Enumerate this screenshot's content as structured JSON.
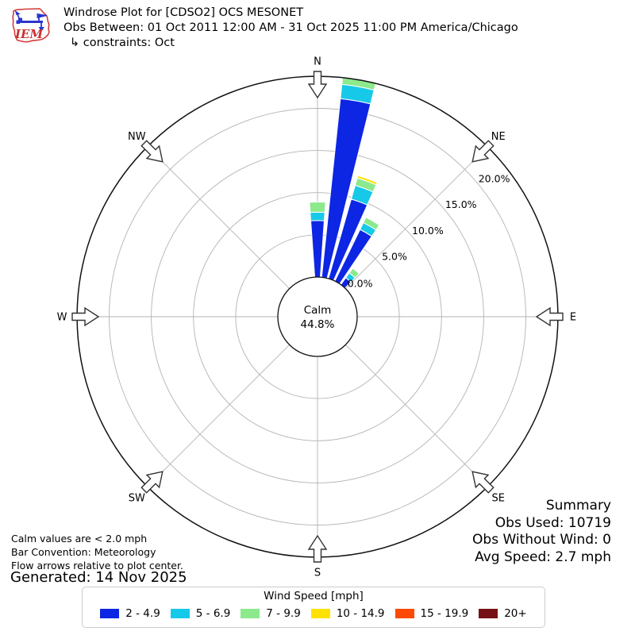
{
  "header": {
    "logo_text": "IEM",
    "title": "Windrose Plot for [CDSO2] OCS MESONET",
    "subtitle": "Obs Between: 01 Oct 2011 12:00 AM - 31 Oct 2025 11:00 PM America/Chicago",
    "constraints": "↳ constraints: Oct"
  },
  "chart_data": {
    "type": "bar",
    "subtype": "windrose-polar-stacked-bar",
    "units": "mph",
    "title": "Windrose Plot for [CDSO2] OCS MESONET",
    "calm": {
      "label": "Calm",
      "value": "44.8%",
      "percent": 44.8
    },
    "compass_labels": [
      "N",
      "NE",
      "E",
      "SE",
      "S",
      "SW",
      "W",
      "NW"
    ],
    "ring_labels": [
      "0.0%",
      "5.0%",
      "10.0%",
      "15.0%",
      "20.0%"
    ],
    "ring_percents": [
      0,
      5,
      10,
      15,
      20
    ],
    "rmax_percent": 23.8,
    "rlabel_azimuth_deg": 52,
    "bar_width_deg": 8,
    "grid": true,
    "speed_bins": [
      {
        "label": "2 - 4.9",
        "color": "#0d26e3"
      },
      {
        "label": "5 - 6.9",
        "color": "#17c9e9"
      },
      {
        "label": "7 - 9.9",
        "color": "#8ce98c"
      },
      {
        "label": "10 - 14.9",
        "color": "#ffe104"
      },
      {
        "label": "15 - 19.9",
        "color": "#fd4903"
      },
      {
        "label": "20+",
        "color": "#751114"
      }
    ],
    "bars": [
      {
        "azimuth_deg": 0,
        "segment_percents": [
          6.7,
          1.0,
          1.2,
          0,
          0,
          0
        ],
        "total_percent": 8.9
      },
      {
        "azimuth_deg": 10,
        "segment_percents": [
          21.3,
          1.7,
          0.8,
          0,
          0,
          0
        ],
        "total_percent": 23.8
      },
      {
        "azimuth_deg": 20,
        "segment_percents": [
          9.8,
          1.7,
          0.9,
          0.3,
          0,
          0
        ],
        "total_percent": 12.7
      },
      {
        "azimuth_deg": 30,
        "segment_percents": [
          6.8,
          0.9,
          0.7,
          0.1,
          0,
          0
        ],
        "total_percent": 8.5
      },
      {
        "azimuth_deg": 40,
        "segment_percents": [
          1.0,
          0.7,
          0.7,
          0,
          0,
          0
        ],
        "total_percent": 2.4
      }
    ]
  },
  "summary": {
    "title": "Summary",
    "obs_used": "Obs Used: 10719",
    "obs_without_wind": "Obs Without Wind: 0",
    "avg_speed": "Avg Speed: 2.7 mph"
  },
  "footnotes": [
    "Calm values are < 2.0 mph",
    "Bar Convention: Meteorology",
    "Flow arrows relative to plot center."
  ],
  "generated": "Generated: 14 Nov 2025",
  "legend": {
    "title": "Wind Speed [mph]"
  }
}
